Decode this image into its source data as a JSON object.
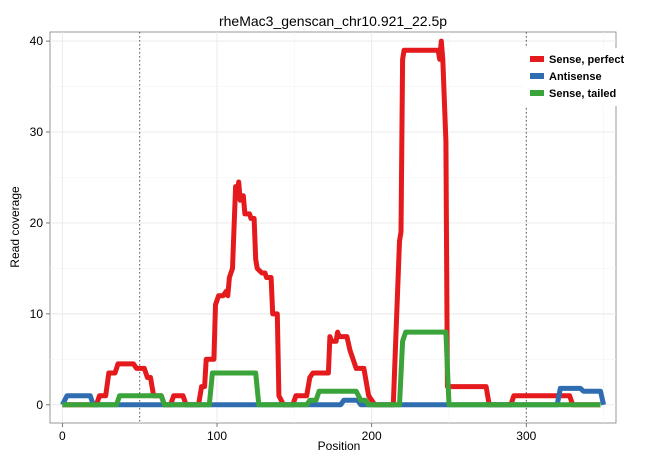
{
  "chart_data": {
    "type": "line",
    "title": "rheMac3_genscan_chr10.921_22.5p",
    "xlabel": "Position",
    "ylabel": "Read coverage",
    "xlim": [
      -8,
      358
    ],
    "ylim": [
      -2,
      41
    ],
    "x_ticks": [
      0,
      100,
      200,
      300
    ],
    "y_ticks": [
      0,
      10,
      20,
      30,
      40
    ],
    "vlines": [
      50,
      300
    ],
    "grid": true,
    "legend_position": "top-right",
    "series": [
      {
        "name": "Sense, perfect",
        "color": "#e41a1c",
        "points": [
          [
            0,
            0
          ],
          [
            22,
            0
          ],
          [
            24,
            1
          ],
          [
            28,
            1
          ],
          [
            30,
            3.5
          ],
          [
            34,
            3.5
          ],
          [
            36,
            4.5
          ],
          [
            46,
            4.5
          ],
          [
            48,
            4
          ],
          [
            53,
            4
          ],
          [
            55,
            3
          ],
          [
            57,
            3
          ],
          [
            59,
            1
          ],
          [
            64,
            1
          ],
          [
            66,
            0
          ],
          [
            70,
            0
          ],
          [
            72,
            1
          ],
          [
            78,
            1
          ],
          [
            80,
            0
          ],
          [
            88,
            0
          ],
          [
            90,
            2
          ],
          [
            92,
            2
          ],
          [
            93,
            5
          ],
          [
            98,
            5
          ],
          [
            99,
            11
          ],
          [
            101,
            12
          ],
          [
            104,
            12
          ],
          [
            106,
            12.5
          ],
          [
            107,
            12
          ],
          [
            108,
            14
          ],
          [
            110,
            15
          ],
          [
            112,
            24
          ],
          [
            113,
            23
          ],
          [
            114,
            24.5
          ],
          [
            115,
            22.5
          ],
          [
            117,
            23
          ],
          [
            118,
            21
          ],
          [
            121,
            21
          ],
          [
            122,
            20.5
          ],
          [
            124,
            20.5
          ],
          [
            125,
            16
          ],
          [
            126,
            15
          ],
          [
            129,
            14.5
          ],
          [
            131,
            14.5
          ],
          [
            132,
            14
          ],
          [
            135,
            14
          ],
          [
            136,
            10
          ],
          [
            139,
            10
          ],
          [
            140,
            1
          ],
          [
            143,
            0
          ],
          [
            149,
            0
          ],
          [
            151,
            1
          ],
          [
            158,
            1
          ],
          [
            160,
            3
          ],
          [
            162,
            3.5
          ],
          [
            172,
            3.5
          ],
          [
            173,
            7.5
          ],
          [
            174,
            7
          ],
          [
            177,
            7
          ],
          [
            178,
            8
          ],
          [
            179,
            7.5
          ],
          [
            184,
            7.5
          ],
          [
            186,
            6
          ],
          [
            190,
            4
          ],
          [
            195,
            4
          ],
          [
            198,
            1
          ],
          [
            202,
            0
          ],
          [
            214,
            0
          ],
          [
            218,
            18
          ],
          [
            219,
            19
          ],
          [
            220,
            38
          ],
          [
            221,
            39
          ],
          [
            243,
            39
          ],
          [
            244,
            38
          ],
          [
            245,
            40
          ],
          [
            246,
            38
          ],
          [
            248,
            29
          ],
          [
            249,
            2
          ],
          [
            274,
            2
          ],
          [
            276,
            0
          ],
          [
            290,
            0
          ],
          [
            292,
            1
          ],
          [
            328,
            1
          ],
          [
            330,
            0
          ],
          [
            348,
            0
          ]
        ]
      },
      {
        "name": "Antisense",
        "color": "#2f6db0",
        "points": [
          [
            0,
            0
          ],
          [
            3,
            1
          ],
          [
            18,
            1
          ],
          [
            20,
            0
          ],
          [
            180,
            0
          ],
          [
            182,
            0.5
          ],
          [
            191,
            0.5
          ],
          [
            193,
            0
          ],
          [
            320,
            0
          ],
          [
            322,
            1.8
          ],
          [
            335,
            1.8
          ],
          [
            337,
            1.5
          ],
          [
            348,
            1.5
          ],
          [
            350,
            0
          ]
        ]
      },
      {
        "name": "Sense, tailed",
        "color": "#3aa33a",
        "points": [
          [
            0,
            0
          ],
          [
            35,
            0
          ],
          [
            37,
            1
          ],
          [
            64,
            1
          ],
          [
            66,
            0
          ],
          [
            95,
            0
          ],
          [
            97,
            3.5
          ],
          [
            125,
            3.5
          ],
          [
            127,
            0
          ],
          [
            158,
            0
          ],
          [
            160,
            0.5
          ],
          [
            164,
            0.5
          ],
          [
            166,
            1.5
          ],
          [
            190,
            1.5
          ],
          [
            193,
            0.5
          ],
          [
            196,
            0.5
          ],
          [
            198,
            0
          ],
          [
            218,
            0
          ],
          [
            220,
            7
          ],
          [
            222,
            8
          ],
          [
            248,
            8
          ],
          [
            250,
            0
          ],
          [
            348,
            0
          ]
        ]
      }
    ]
  }
}
